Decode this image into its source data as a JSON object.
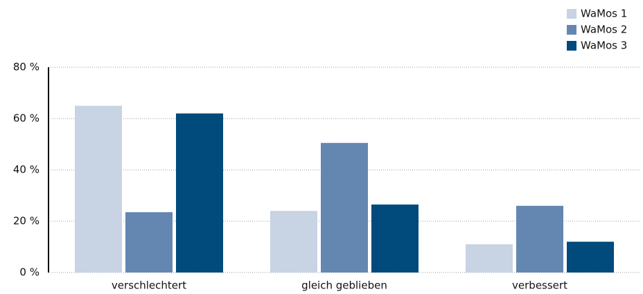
{
  "chart_data": {
    "type": "bar",
    "categories": [
      "verschlechtert",
      "gleich geblieben",
      "verbessert"
    ],
    "series": [
      {
        "name": "WaMos 1",
        "color": "#c8d3e3",
        "values": [
          65,
          24,
          11
        ]
      },
      {
        "name": "WaMos 2",
        "color": "#6387b0",
        "values": [
          23.5,
          50.5,
          26
        ]
      },
      {
        "name": "WaMos 3",
        "color": "#004a7c",
        "values": [
          62,
          26.5,
          12
        ]
      }
    ],
    "ylim": [
      0,
      80
    ],
    "yticks": [
      {
        "value": 0,
        "label": "0 %"
      },
      {
        "value": 20,
        "label": "20 %"
      },
      {
        "value": 40,
        "label": "40 %"
      },
      {
        "value": 60,
        "label": "60 %"
      },
      {
        "value": 80,
        "label": "80 %"
      }
    ],
    "grid": true,
    "legend": "top-right"
  }
}
